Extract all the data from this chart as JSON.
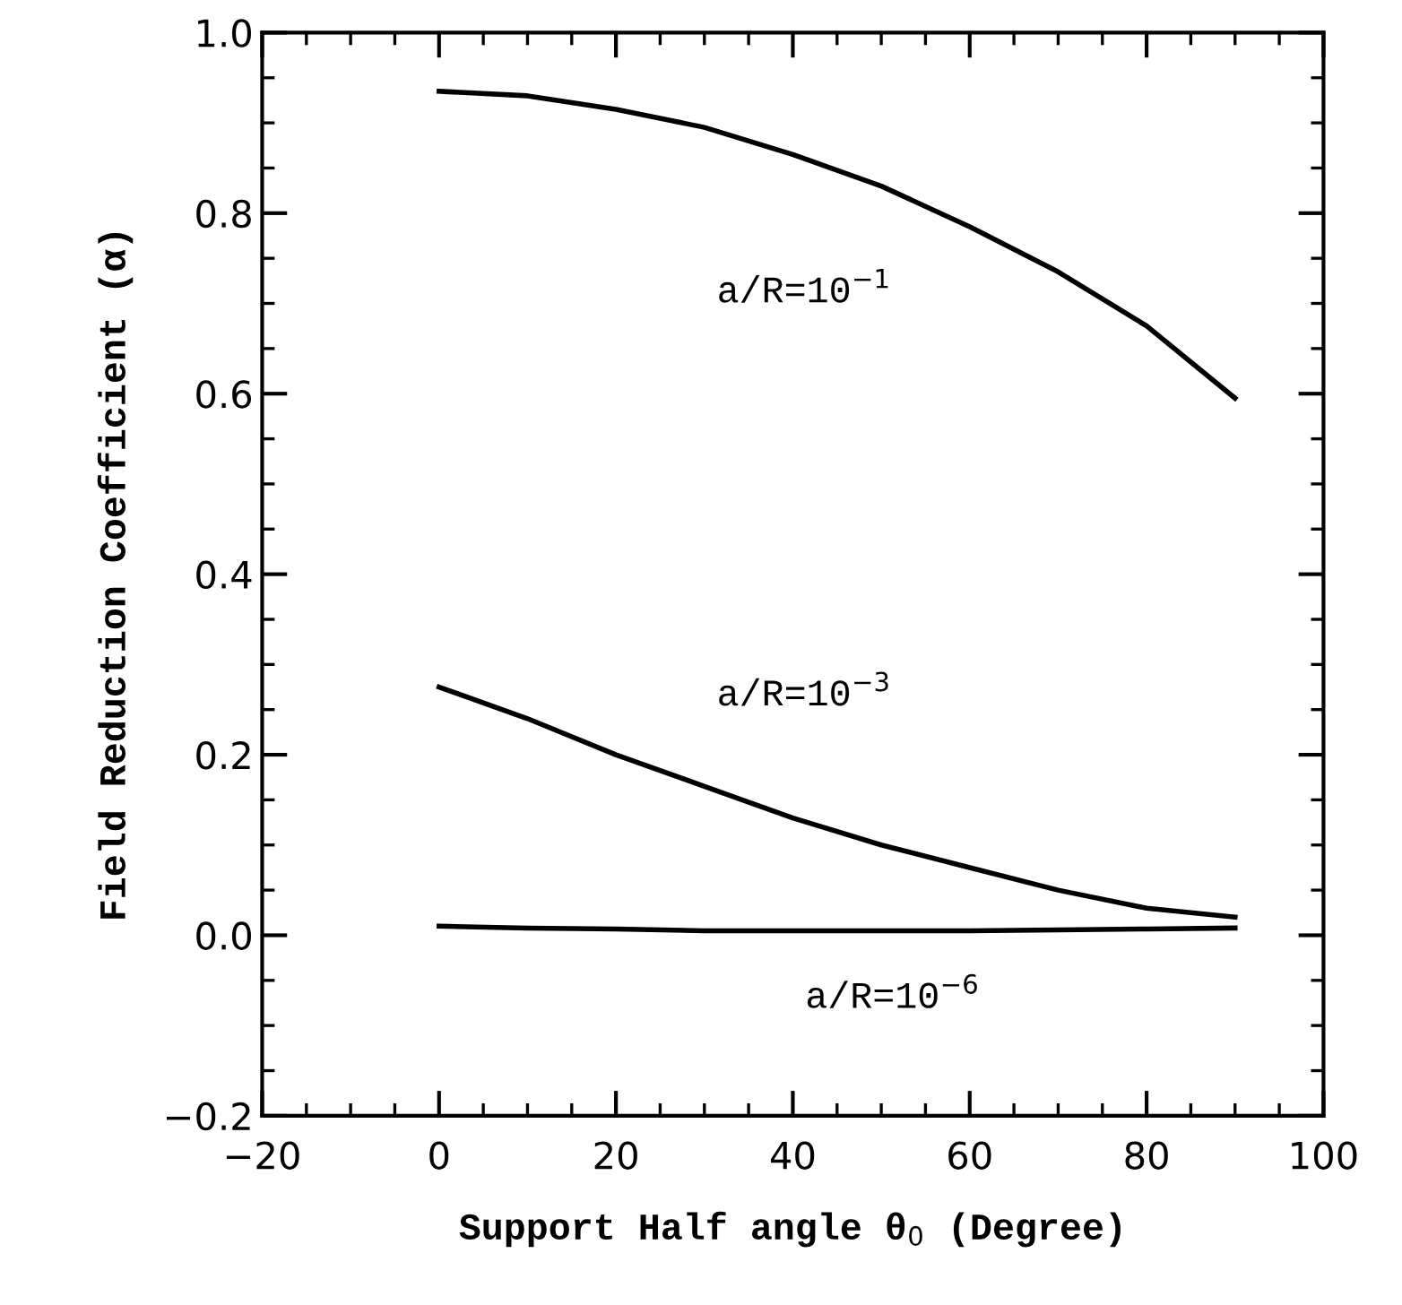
{
  "chart_data": {
    "type": "line",
    "xlabel": "Support Half angle θ$_{0}$ (Degree)",
    "ylabel": "Field Reduction Coefficient (α)",
    "xlim": [
      -20,
      100
    ],
    "xticks": [
      {
        "value": -20,
        "label": "−20"
      },
      0,
      20,
      40,
      60,
      80,
      100
    ],
    "ylim": [
      -0.2,
      1.0
    ],
    "yticks": [
      {
        "value": -0.2,
        "label": "−0.2"
      },
      {
        "value": 0.0,
        "label": "0.0"
      },
      0.2,
      0.4,
      0.6,
      0.8,
      {
        "value": 1.0,
        "label": "1.0"
      }
    ],
    "x": [
      0,
      10,
      20,
      30,
      40,
      50,
      60,
      70,
      80,
      90
    ],
    "series": [
      {
        "name": "a/R=10$^{−1}$",
        "color": "#000000",
        "values": [
          0.935,
          0.93,
          0.915,
          0.895,
          0.865,
          0.83,
          0.785,
          0.735,
          0.675,
          0.595
        ]
      },
      {
        "name": "a/R=10$^{−3}$",
        "color": "#000000",
        "values": [
          0.275,
          0.24,
          0.2,
          0.165,
          0.13,
          0.1,
          0.075,
          0.05,
          0.03,
          0.02
        ]
      },
      {
        "name": "a/R=10$^{−6}$",
        "color": "#000000",
        "values": [
          0.01,
          0.008,
          0.007,
          0.005,
          0.005,
          0.005,
          0.005,
          0.006,
          0.007,
          0.008
        ]
      }
    ],
    "grid": false,
    "legend": false,
    "marker": "none",
    "line_style": "solid"
  }
}
